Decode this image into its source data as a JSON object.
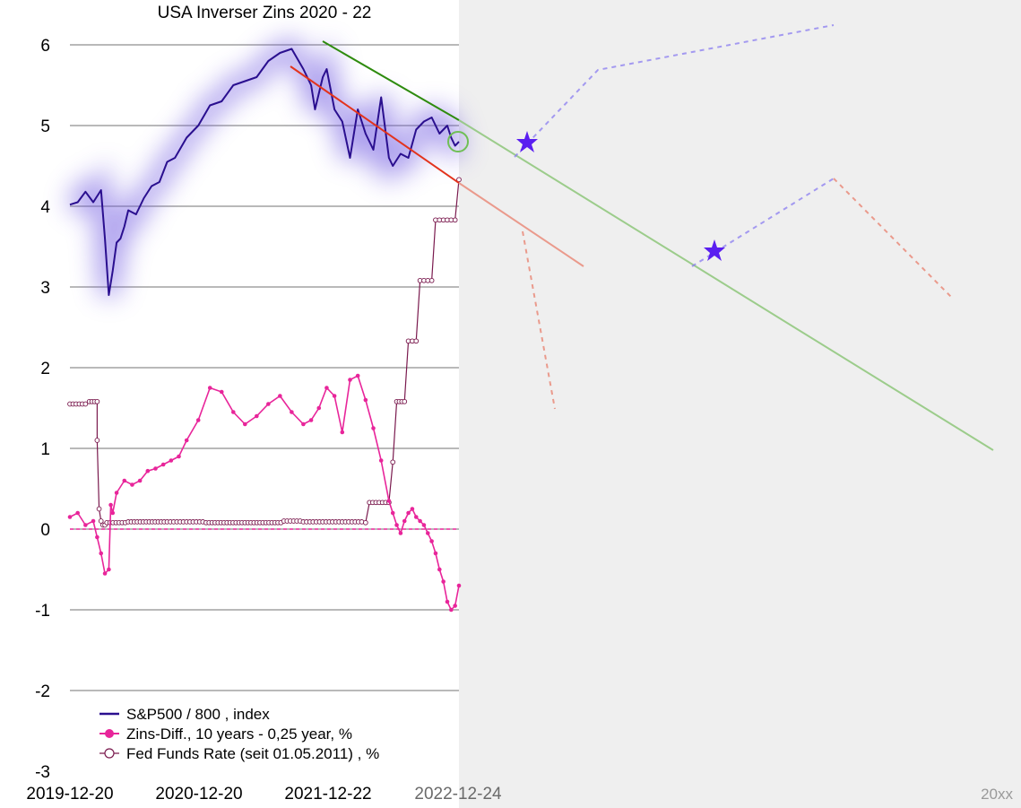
{
  "chart_data": {
    "type": "line",
    "title": "USA Inverser Zins 2020 - 22",
    "xlabel": "",
    "ylabel": "",
    "ylim": [
      -3,
      6
    ],
    "y_ticks": [
      "6",
      "5",
      "4",
      "3",
      "2",
      "1",
      "0",
      "-1",
      "-2",
      "-3"
    ],
    "x_tick_labels": [
      "2019-12-20",
      "2020-12-20",
      "2021-12-22",
      "2022-12-24"
    ],
    "future_label": "20xx",
    "grid": "horizontal",
    "legend_position": "bottom-left",
    "colors": {
      "sp500": "#2a0f8f",
      "zins_diff": "#e8259a",
      "fed_funds": "#7a1a4e",
      "upper_trend": "#2e8b0e",
      "lower_trend": "#e3331c",
      "projection": "#8a7cf0",
      "star": "#5a1ef0",
      "future_bg": "#efefef"
    },
    "series": [
      {
        "name": "S&P500 / 800 , index",
        "x": [
          0,
          0.02,
          0.04,
          0.06,
          0.08,
          0.09,
          0.1,
          0.11,
          0.12,
          0.13,
          0.14,
          0.15,
          0.17,
          0.19,
          0.21,
          0.23,
          0.25,
          0.27,
          0.3,
          0.33,
          0.36,
          0.39,
          0.42,
          0.45,
          0.48,
          0.51,
          0.54,
          0.57,
          0.6,
          0.62,
          0.63,
          0.65,
          0.66,
          0.68,
          0.7,
          0.72,
          0.74,
          0.76,
          0.78,
          0.8,
          0.82,
          0.83,
          0.85,
          0.87,
          0.89,
          0.91,
          0.93,
          0.95,
          0.97,
          0.98,
          0.99,
          1.0
        ],
        "values": [
          4.02,
          4.05,
          4.18,
          4.05,
          4.2,
          3.6,
          2.9,
          3.2,
          3.55,
          3.6,
          3.75,
          3.95,
          3.9,
          4.1,
          4.25,
          4.3,
          4.55,
          4.6,
          4.85,
          5.0,
          5.25,
          5.3,
          5.5,
          5.55,
          5.6,
          5.8,
          5.9,
          5.95,
          5.7,
          5.5,
          5.2,
          5.6,
          5.7,
          5.2,
          5.05,
          4.6,
          5.2,
          4.9,
          4.7,
          5.35,
          4.6,
          4.5,
          4.65,
          4.6,
          4.95,
          5.05,
          5.1,
          4.9,
          5.0,
          4.85,
          4.75,
          4.8
        ]
      },
      {
        "name": "Zins-Diff., 10 years - 0,25 year, %",
        "x": [
          0,
          0.02,
          0.04,
          0.06,
          0.07,
          0.08,
          0.09,
          0.1,
          0.105,
          0.11,
          0.12,
          0.14,
          0.16,
          0.18,
          0.2,
          0.22,
          0.24,
          0.26,
          0.28,
          0.3,
          0.33,
          0.36,
          0.39,
          0.42,
          0.45,
          0.48,
          0.51,
          0.54,
          0.57,
          0.6,
          0.62,
          0.64,
          0.66,
          0.68,
          0.7,
          0.72,
          0.74,
          0.76,
          0.78,
          0.8,
          0.82,
          0.83,
          0.84,
          0.85,
          0.86,
          0.87,
          0.88,
          0.89,
          0.9,
          0.91,
          0.92,
          0.93,
          0.94,
          0.95,
          0.96,
          0.97,
          0.98,
          0.99,
          1.0
        ],
        "values": [
          0.15,
          0.2,
          0.05,
          0.1,
          -0.1,
          -0.3,
          -0.55,
          -0.5,
          0.3,
          0.2,
          0.45,
          0.6,
          0.55,
          0.6,
          0.72,
          0.75,
          0.8,
          0.85,
          0.9,
          1.1,
          1.35,
          1.75,
          1.7,
          1.45,
          1.3,
          1.4,
          1.55,
          1.65,
          1.45,
          1.3,
          1.35,
          1.5,
          1.75,
          1.65,
          1.2,
          1.85,
          1.9,
          1.6,
          1.25,
          0.85,
          0.35,
          0.2,
          0.05,
          -0.05,
          0.1,
          0.2,
          0.25,
          0.15,
          0.1,
          0.05,
          -0.05,
          -0.15,
          -0.3,
          -0.5,
          -0.65,
          -0.9,
          -1.0,
          -0.95,
          -0.7
        ]
      },
      {
        "name": "Fed Funds Rate (seit 01.05.2011) , %",
        "x": [
          0,
          0.04,
          0.05,
          0.07,
          0.07,
          0.075,
          0.08,
          0.085,
          0.09,
          0.095,
          0.15,
          0.25,
          0.35,
          0.45,
          0.55,
          0.6,
          0.65,
          0.7,
          0.75,
          0.76,
          0.77,
          0.82,
          0.83,
          0.84,
          0.86,
          0.87,
          0.88,
          0.89,
          0.9,
          0.91,
          0.92,
          0.93,
          0.94,
          0.95,
          0.96,
          0.97,
          0.98,
          0.99,
          1.0
        ],
        "values": [
          1.55,
          1.55,
          1.58,
          1.58,
          1.1,
          0.25,
          0.1,
          0.05,
          0.05,
          0.08,
          0.09,
          0.09,
          0.08,
          0.08,
          0.1,
          0.09,
          0.09,
          0.09,
          0.09,
          0.08,
          0.33,
          0.33,
          0.83,
          1.58,
          1.58,
          2.33,
          2.33,
          2.33,
          3.08,
          3.08,
          3.08,
          3.08,
          3.83,
          3.83,
          3.83,
          3.83,
          3.83,
          3.83,
          4.33
        ]
      }
    ]
  },
  "legend": [
    {
      "label": "S&P500 / 800 , index",
      "marker": "line"
    },
    {
      "label": "Zins-Diff., 10 years - 0,25 year, %",
      "marker": "filled-dot"
    },
    {
      "label": "Fed Funds Rate (seit 01.05.2011) , %",
      "marker": "hollow-dot"
    }
  ]
}
